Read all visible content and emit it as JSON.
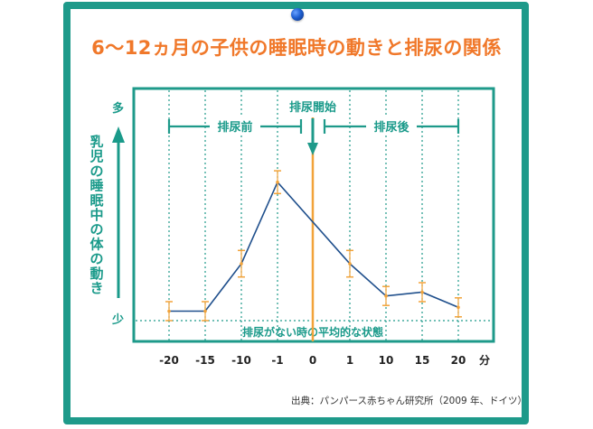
{
  "title": "6〜12ヵ月の子供の睡眠時の動きと排尿の関係",
  "source": "出典：パンパース赤ちゃん研究所（2009 年、ドイツ）",
  "colors": {
    "frame": "#1e9a8a",
    "title": "#f0782a",
    "line": "#1f4f8c",
    "error_bar": "#f2a33a",
    "marker": "#f2a33a"
  },
  "chart_data": {
    "type": "line",
    "title": "6〜12ヵ月の子供の睡眠時の動きと排尿の関係",
    "ylabel": "乳児の睡眠中の体の動き",
    "y_top_label": "多",
    "y_bottom_label": "少",
    "x_unit": "分",
    "categories": [
      "-20",
      "-15",
      "-10",
      "-1",
      "0",
      "1",
      "10",
      "15",
      "20"
    ],
    "points": [
      {
        "x": "-20",
        "y": 0.05,
        "err": 0.05
      },
      {
        "x": "-15",
        "y": 0.05,
        "err": 0.05
      },
      {
        "x": "-10",
        "y": 0.3,
        "err": 0.07
      },
      {
        "x": "-1",
        "y": 0.73,
        "err": 0.06
      },
      {
        "x": "1",
        "y": 0.3,
        "err": 0.07
      },
      {
        "x": "10",
        "y": 0.13,
        "err": 0.05
      },
      {
        "x": "15",
        "y": 0.15,
        "err": 0.05
      },
      {
        "x": "20",
        "y": 0.07,
        "err": 0.05
      }
    ],
    "baseline_label": "排尿がない時の平均的な状態",
    "baseline_value": 0,
    "marker_x": "0",
    "marker_label": "排尿開始",
    "phases": [
      {
        "label": "排尿前",
        "from": "-20",
        "to": "-1"
      },
      {
        "label": "排尿後",
        "from": "1",
        "to": "20"
      }
    ],
    "grid": "vertical dotted"
  }
}
